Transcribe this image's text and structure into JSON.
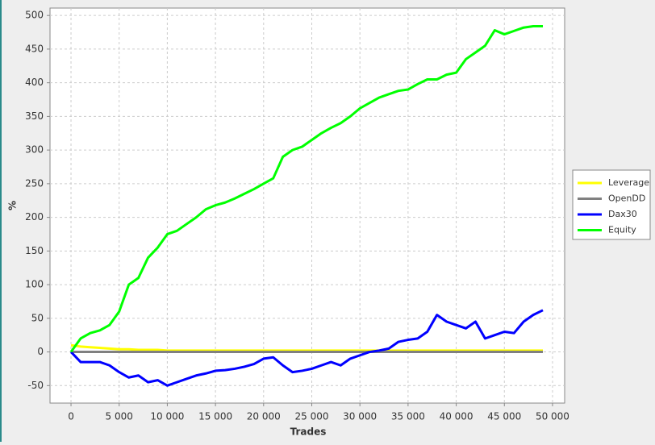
{
  "chart_data": {
    "type": "line",
    "xlabel": "Trades",
    "ylabel": "%",
    "x": [
      0,
      1000,
      2000,
      3000,
      4000,
      5000,
      6000,
      7000,
      8000,
      9000,
      10000,
      11000,
      12000,
      13000,
      14000,
      15000,
      16000,
      17000,
      18000,
      19000,
      20000,
      21000,
      22000,
      23000,
      24000,
      25000,
      26000,
      27000,
      28000,
      29000,
      30000,
      31000,
      32000,
      33000,
      34000,
      35000,
      36000,
      37000,
      38000,
      39000,
      40000,
      41000,
      42000,
      43000,
      44000,
      45000,
      46000,
      47000,
      48000,
      49000
    ],
    "series": [
      {
        "name": "Leverage",
        "color": "#ffff00",
        "values": [
          10,
          8,
          7,
          6,
          5,
          4,
          4,
          3,
          3,
          3,
          2,
          2,
          2,
          2,
          2,
          2,
          2,
          2,
          2,
          2,
          2,
          2,
          2,
          2,
          2,
          2,
          2,
          2,
          2,
          2,
          2,
          2,
          2,
          2,
          2,
          2,
          2,
          2,
          2,
          2,
          2,
          2,
          2,
          2,
          2,
          2,
          2,
          2,
          2,
          2
        ]
      },
      {
        "name": "OpenDD",
        "color": "#808080",
        "values": [
          0,
          0,
          0,
          0,
          0,
          0,
          0,
          0,
          0,
          0,
          0,
          0,
          0,
          0,
          0,
          0,
          0,
          0,
          0,
          0,
          0,
          0,
          0,
          0,
          0,
          0,
          0,
          0,
          0,
          0,
          0,
          0,
          0,
          0,
          0,
          0,
          0,
          0,
          0,
          0,
          0,
          0,
          0,
          0,
          0,
          0,
          0,
          0,
          0,
          0
        ]
      },
      {
        "name": "Dax30",
        "color": "#0000ff",
        "values": [
          0,
          -15,
          -15,
          -15,
          -20,
          -30,
          -38,
          -35,
          -45,
          -42,
          -50,
          -45,
          -40,
          -35,
          -32,
          -28,
          -27,
          -25,
          -22,
          -18,
          -10,
          -8,
          -20,
          -30,
          -28,
          -25,
          -20,
          -15,
          -20,
          -10,
          -5,
          0,
          2,
          5,
          15,
          18,
          20,
          30,
          55,
          45,
          40,
          35,
          45,
          20,
          25,
          30,
          28,
          45,
          55,
          62
        ]
      },
      {
        "name": "Equity",
        "color": "#00ff00",
        "values": [
          0,
          20,
          28,
          32,
          40,
          60,
          100,
          110,
          140,
          155,
          175,
          180,
          190,
          200,
          212,
          218,
          222,
          228,
          235,
          242,
          250,
          258,
          290,
          300,
          305,
          315,
          325,
          333,
          340,
          350,
          362,
          370,
          378,
          383,
          388,
          390,
          398,
          405,
          405,
          412,
          415,
          435,
          445,
          455,
          478,
          472,
          477,
          482,
          484,
          484
        ]
      }
    ],
    "xlim": [
      -2180,
      51260
    ],
    "ylim": [
      -76,
      511
    ],
    "xticks": [
      0,
      {
        "value": 5000,
        "label": "5 000"
      },
      {
        "value": 10000,
        "label": "10 000"
      },
      {
        "value": 15000,
        "label": "15 000"
      },
      {
        "value": 20000,
        "label": "20 000"
      },
      {
        "value": 25000,
        "label": "25 000"
      },
      {
        "value": 30000,
        "label": "30 000"
      },
      {
        "value": 35000,
        "label": "35 000"
      },
      {
        "value": 40000,
        "label": "40 000"
      },
      {
        "value": 45000,
        "label": "45 000"
      },
      {
        "value": 50000,
        "label": "50 000"
      }
    ],
    "yticks": [
      -50,
      0,
      50,
      100,
      150,
      200,
      250,
      300,
      350,
      400,
      450,
      500
    ],
    "grid": true,
    "legend": "right"
  }
}
